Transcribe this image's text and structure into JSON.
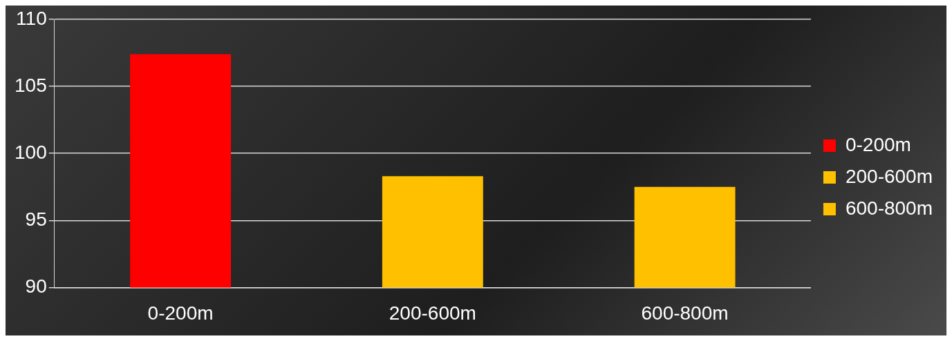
{
  "chart_data": {
    "type": "bar",
    "categories": [
      "0-200m",
      "200-600m",
      "600-800m"
    ],
    "series": [
      {
        "name": "0-200m",
        "color": "#ff0000",
        "values": [
          107.4,
          null,
          null
        ]
      },
      {
        "name": "200-600m",
        "color": "#ffc000",
        "values": [
          null,
          98.3,
          null
        ]
      },
      {
        "name": "600-800m",
        "color": "#ffc000",
        "values": [
          null,
          null,
          97.5
        ]
      }
    ],
    "ylim": [
      90,
      110
    ],
    "yticks": [
      90,
      95,
      100,
      105,
      110
    ],
    "grid": "y",
    "legend": "right"
  }
}
